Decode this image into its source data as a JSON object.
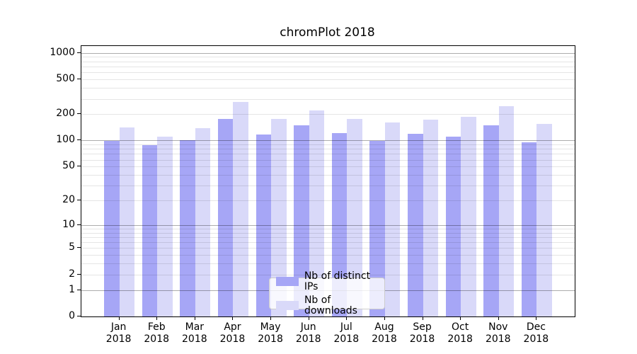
{
  "chart_data": {
    "type": "bar",
    "title": "chromPlot 2018",
    "categories": [
      "Jan",
      "Feb",
      "Mar",
      "Apr",
      "May",
      "Jun",
      "Jul",
      "Aug",
      "Sep",
      "Oct",
      "Nov",
      "Dec"
    ],
    "x_sublabel_year": "2018",
    "series": [
      {
        "name": "Nb of distinct IPs",
        "color": "#a6a6f6",
        "values": [
          98,
          88,
          101,
          176,
          117,
          150,
          122,
          98,
          119,
          110,
          150,
          96
        ]
      },
      {
        "name": "Nb of downloads",
        "color": "#d9d9f9",
        "values": [
          140,
          110,
          138,
          277,
          176,
          222,
          175,
          161,
          173,
          186,
          246,
          154
        ]
      }
    ],
    "y_scale": "log10(1+x)",
    "y_ticks": [
      0,
      1,
      2,
      5,
      10,
      20,
      50,
      100,
      200,
      500,
      1000
    ],
    "y_major_gridlines": [
      1,
      10,
      100,
      1000
    ],
    "ylim": [
      0,
      1200
    ],
    "grid": true,
    "legend_position": "lower center",
    "colors": {
      "distinct_ips": "#a6a6f6",
      "downloads": "#d9d9f9",
      "major_grid": "rgba(0,0,0,0.32)",
      "minor_grid": "rgba(0,0,0,0.10)",
      "axis": "#000000"
    }
  }
}
